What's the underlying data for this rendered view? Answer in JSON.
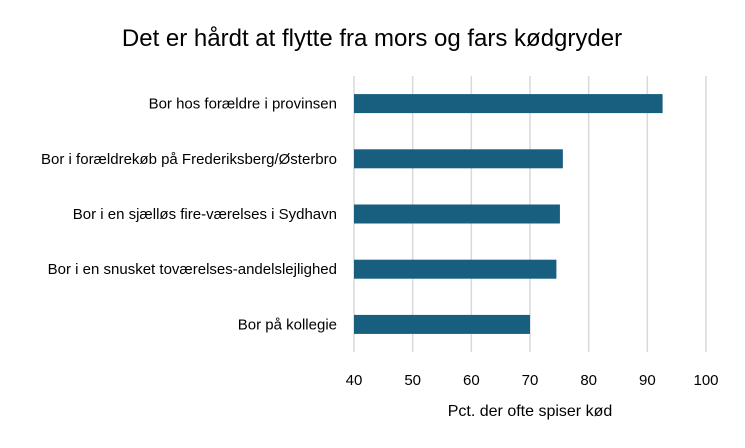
{
  "chart_data": {
    "type": "bar",
    "orientation": "horizontal",
    "title": "Det er hårdt at flytte fra mors og fars kødgryder",
    "xlabel": "Pct. der ofte spiser kød",
    "ylabel": "",
    "categories": [
      "Bor hos forældre i provinsen",
      "Bor i forældrekøb på Frederiksberg/Østerbro",
      "Bor i en sjælløs fire-værelses i Sydhavn",
      "Bor i en snusket toværelses-andelslejlighed",
      "Bor på kollegie"
    ],
    "values": [
      92.6,
      75.6,
      75.1,
      74.5,
      70.0
    ],
    "xlim": [
      40,
      100
    ],
    "xticks": [
      "40",
      "50",
      "60",
      "70",
      "80",
      "90",
      "100"
    ],
    "grid": true,
    "bar_color": "#175e7f",
    "grid_color": "#d9d9d9"
  }
}
